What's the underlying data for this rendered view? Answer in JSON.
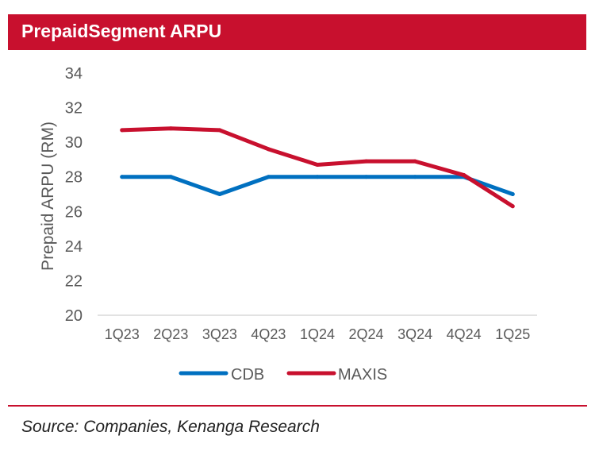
{
  "header": {
    "title": "PrepaidSegment ARPU"
  },
  "footer": {
    "source": "Source: Companies, Kenanga Research"
  },
  "chart_data": {
    "type": "line",
    "title": "PrepaidSegment ARPU",
    "xlabel": "",
    "ylabel": "Prepaid ARPU (RM)",
    "categories": [
      "1Q23",
      "2Q23",
      "3Q23",
      "4Q23",
      "1Q24",
      "2Q24",
      "3Q24",
      "4Q24",
      "1Q25"
    ],
    "ylim": [
      20,
      34
    ],
    "yticks": [
      20,
      22,
      24,
      26,
      28,
      30,
      32,
      34
    ],
    "grid": false,
    "legend": "bottom",
    "series": [
      {
        "name": "CDB",
        "color": "#0070c0",
        "values": [
          28,
          28,
          27,
          28,
          28,
          28,
          28,
          28,
          27
        ]
      },
      {
        "name": "MAXIS",
        "color": "#c8102e",
        "values": [
          30.7,
          30.8,
          30.7,
          29.6,
          28.7,
          28.9,
          28.9,
          28.1,
          26.3
        ]
      }
    ]
  }
}
